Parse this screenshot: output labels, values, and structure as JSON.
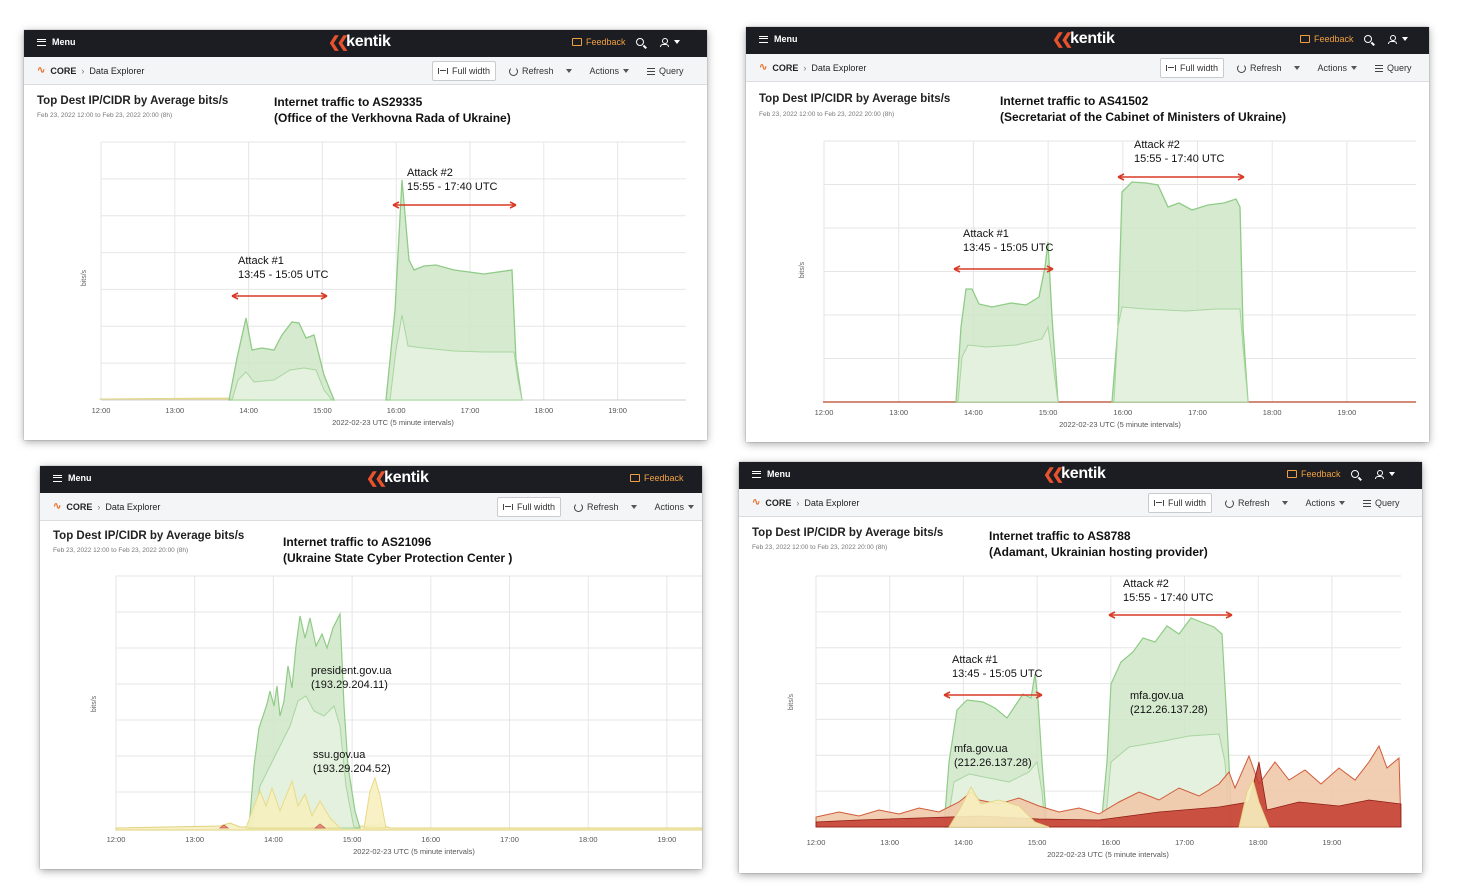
{
  "app": {
    "menu_label": "Menu",
    "logo_text": "kentik",
    "feedback_label": "Feedback",
    "breadcrumb_root": "CORE",
    "breadcrumb_page": "Data Explorer",
    "full_width_label": "Full width",
    "refresh_label": "Refresh",
    "actions_label": "Actions",
    "query_label": "Query",
    "accent_color": "#e8532d",
    "feedback_color": "#f0a040",
    "header_bg": "#1b1d23"
  },
  "panels": [
    {
      "title": "Top Dest IP/CIDR by Average bits/s",
      "time_range": "Feb 23, 2022 12:00 to Feb 23, 2022 20:00 (8h)",
      "annotation_line1": "Internet traffic to AS29335",
      "annotation_line2": "(Office of the Verkhovna Rada of Ukraine)",
      "y_label": "bits/s",
      "x_caption": "2022-02-23 UTC (5 minute intervals)",
      "x_ticks": [
        "12:00",
        "13:00",
        "14:00",
        "15:00",
        "16:00",
        "17:00",
        "18:00",
        "19:00"
      ],
      "labels": [
        {
          "text": "Attack #1"
        },
        {
          "text": "13:45 - 15:05 UTC"
        },
        {
          "text": "Attack #2"
        },
        {
          "text": "15:55 - 17:40 UTC"
        }
      ]
    },
    {
      "title": "Top Dest IP/CIDR by Average bits/s",
      "time_range": "Feb 23, 2022 12:00 to Feb 23, 2022 20:00 (8h)",
      "annotation_line1": "Internet traffic to AS41502",
      "annotation_line2": "(Secretariat of the Cabinet of Ministers of Ukraine)",
      "y_label": "bits/s",
      "x_caption": "2022-02-23 UTC (5 minute intervals)",
      "x_ticks": [
        "12:00",
        "13:00",
        "14:00",
        "15:00",
        "16:00",
        "17:00",
        "18:00",
        "19:00"
      ],
      "labels": [
        {
          "text": "Attack #1"
        },
        {
          "text": "13:45 - 15:05 UTC"
        },
        {
          "text": "Attack #2"
        },
        {
          "text": "15:55 - 17:40 UTC"
        }
      ]
    },
    {
      "title": "Top Dest IP/CIDR by Average bits/s",
      "time_range": "Feb 23, 2022 12:00 to Feb 23, 2022 20:00 (8h)",
      "annotation_line1": "Internet traffic to AS21096",
      "annotation_line2": "(Ukraine State Cyber Protection Center )",
      "y_label": "bits/s",
      "x_caption": "2022-02-23 UTC (5 minute intervals)",
      "x_ticks": [
        "12:00",
        "13:00",
        "14:00",
        "15:00",
        "16:00",
        "17:00",
        "18:00",
        "19:00"
      ],
      "labels": [
        {
          "text": "president.gov.ua"
        },
        {
          "text": "(193.29.204.11)"
        },
        {
          "text": "ssu.gov.ua"
        },
        {
          "text": "(193.29.204.52)"
        }
      ]
    },
    {
      "title": "Top Dest IP/CIDR by Average bits/s",
      "time_range": "Feb 23, 2022 12:00 to Feb 23, 2022 20:00 (8h)",
      "annotation_line1": "Internet traffic to AS8788",
      "annotation_line2": "(Adamant, Ukrainian hosting provider)",
      "y_label": "bits/s",
      "x_caption": "2022-02-23 UTC (5 minute intervals)",
      "x_ticks": [
        "12:00",
        "13:00",
        "14:00",
        "15:00",
        "16:00",
        "17:00",
        "18:00",
        "19:00"
      ],
      "labels": [
        {
          "text": "Attack #2"
        },
        {
          "text": "15:55 - 17:40 UTC"
        },
        {
          "text": "Attack #1"
        },
        {
          "text": "13:45 - 15:05 UTC"
        },
        {
          "text": "mfa.gov.ua"
        },
        {
          "text": "(212.26.137.28)"
        },
        {
          "text": "mfa.gov.ua"
        },
        {
          "text": "(212.26.137.28)"
        }
      ]
    }
  ]
}
